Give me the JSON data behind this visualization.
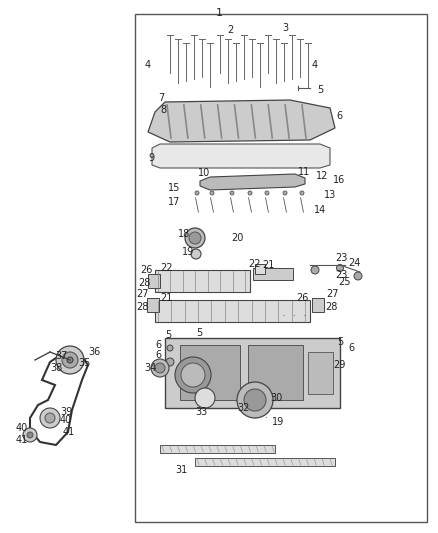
{
  "title": "1",
  "bg_color": "#ffffff",
  "border_color": "#555555",
  "text_color": "#222222",
  "fig_width": 4.38,
  "fig_height": 5.33,
  "dpi": 100
}
